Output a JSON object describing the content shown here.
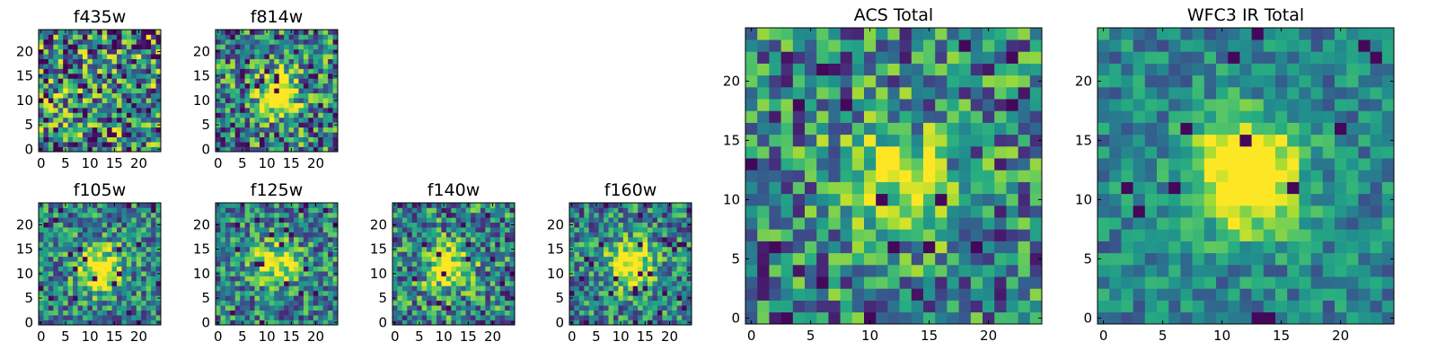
{
  "figure": {
    "description_free": true
  },
  "chart_data": [
    {
      "type": "heatmap",
      "id": "f435w",
      "title": "f435w",
      "xlim": [
        0,
        24
      ],
      "ylim": [
        0,
        24
      ],
      "xticks": [
        0,
        5,
        10,
        15,
        20
      ],
      "yticks": [
        0,
        5,
        10,
        15,
        20
      ],
      "grid": false,
      "colormap": "viridis",
      "source_center": null,
      "source_peak": 0.0,
      "noise": 0.55,
      "seed": 11
    },
    {
      "type": "heatmap",
      "id": "f814w",
      "title": "f814w",
      "xlim": [
        0,
        24
      ],
      "ylim": [
        0,
        24
      ],
      "xticks": [
        0,
        5,
        10,
        15,
        20
      ],
      "yticks": [
        0,
        5,
        10,
        15,
        20
      ],
      "grid": false,
      "colormap": "viridis",
      "source_center": [
        12,
        11
      ],
      "source_peak": 0.75,
      "noise": 0.45,
      "seed": 23
    },
    {
      "type": "heatmap",
      "id": "f105w",
      "title": "f105w",
      "xlim": [
        0,
        24
      ],
      "ylim": [
        0,
        24
      ],
      "xticks": [
        0,
        5,
        10,
        15,
        20
      ],
      "yticks": [
        0,
        5,
        10,
        15,
        20
      ],
      "grid": false,
      "colormap": "viridis",
      "source_center": [
        12,
        11
      ],
      "source_peak": 0.7,
      "noise": 0.35,
      "seed": 37
    },
    {
      "type": "heatmap",
      "id": "f125w",
      "title": "f125w",
      "xlim": [
        0,
        24
      ],
      "ylim": [
        0,
        24
      ],
      "xticks": [
        0,
        5,
        10,
        15,
        20
      ],
      "yticks": [
        0,
        5,
        10,
        15,
        20
      ],
      "grid": false,
      "colormap": "viridis",
      "source_center": [
        12,
        12
      ],
      "source_peak": 0.55,
      "noise": 0.35,
      "seed": 41
    },
    {
      "type": "heatmap",
      "id": "f140w",
      "title": "f140w",
      "xlim": [
        0,
        24
      ],
      "ylim": [
        0,
        24
      ],
      "xticks": [
        0,
        5,
        10,
        15,
        20
      ],
      "yticks": [
        0,
        5,
        10,
        15,
        20
      ],
      "grid": false,
      "colormap": "viridis",
      "source_center": [
        11,
        11
      ],
      "source_peak": 0.65,
      "noise": 0.4,
      "seed": 53
    },
    {
      "type": "heatmap",
      "id": "f160w",
      "title": "f160w",
      "xlim": [
        0,
        24
      ],
      "ylim": [
        0,
        24
      ],
      "xticks": [
        0,
        5,
        10,
        15,
        20
      ],
      "yticks": [
        0,
        5,
        10,
        15,
        20
      ],
      "grid": false,
      "colormap": "viridis",
      "source_center": [
        12,
        12
      ],
      "source_peak": 0.75,
      "noise": 0.35,
      "seed": 67
    },
    {
      "type": "heatmap",
      "id": "acs_total",
      "title": "ACS Total",
      "xlim": [
        0,
        24
      ],
      "ylim": [
        0,
        24
      ],
      "xticks": [
        0,
        5,
        10,
        15,
        20
      ],
      "yticks": [
        0,
        5,
        10,
        15,
        20
      ],
      "grid": false,
      "colormap": "viridis",
      "source_center": [
        12,
        12
      ],
      "source_peak": 0.55,
      "noise": 0.4,
      "seed": 79
    },
    {
      "type": "heatmap",
      "id": "wfc3_ir_total",
      "title": "WFC3 IR Total",
      "xlim": [
        0,
        24
      ],
      "ylim": [
        0,
        24
      ],
      "xticks": [
        0,
        5,
        10,
        15,
        20
      ],
      "yticks": [
        0,
        5,
        10,
        15,
        20
      ],
      "grid": false,
      "colormap": "viridis",
      "source_center": [
        12,
        12
      ],
      "source_peak": 0.85,
      "noise": 0.22,
      "seed": 97
    }
  ]
}
